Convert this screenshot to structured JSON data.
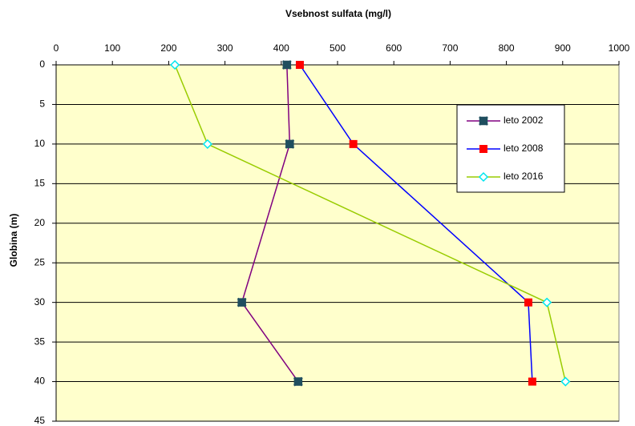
{
  "chart_data": {
    "type": "line",
    "title": "Vsebnost sulfata (mg/l)",
    "y_label": "Globina (m)",
    "y": [
      0,
      10,
      30,
      40
    ],
    "series": [
      {
        "name": "leto 2002",
        "color": "#800080",
        "marker": "star",
        "marker_color": "#1f4e5f",
        "values": [
          410,
          415,
          330,
          430
        ]
      },
      {
        "name": "leto 2008",
        "color": "#0000ff",
        "marker": "square",
        "marker_color": "#ff0000",
        "values": [
          433,
          528,
          839,
          846
        ]
      },
      {
        "name": "leto 2016",
        "color": "#99cc00",
        "marker": "diamond",
        "marker_color": "#00e5ee",
        "values": [
          211,
          269,
          872,
          905
        ]
      }
    ],
    "xlim": [
      0,
      1000
    ],
    "xticks": [
      0,
      100,
      200,
      300,
      400,
      500,
      600,
      700,
      800,
      900,
      1000
    ],
    "ylim": [
      0,
      45
    ],
    "yticks": [
      0,
      5,
      10,
      15,
      20,
      25,
      30,
      35,
      40,
      45
    ],
    "y_inverted": true,
    "x_axis_position": "top",
    "grid": true,
    "plot_background": "#ffffcc",
    "legend": "upper right"
  }
}
